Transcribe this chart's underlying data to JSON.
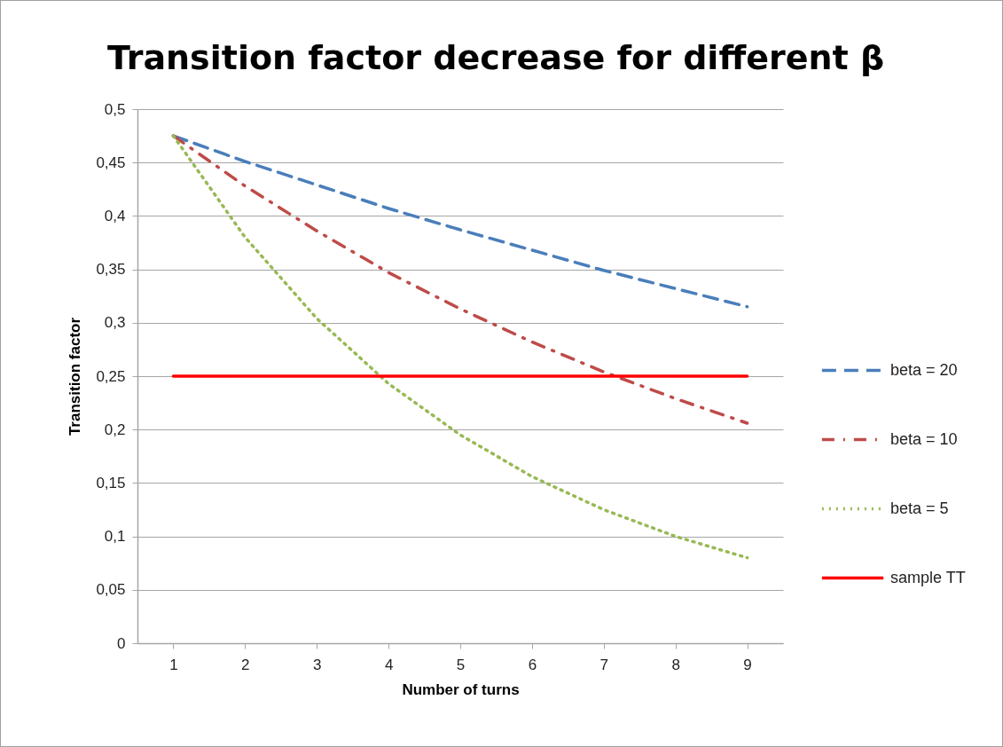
{
  "chart_data": {
    "type": "line",
    "title": "Transition factor decrease for different β",
    "xlabel": "Number of turns",
    "ylabel": "Transition factor",
    "categories": [
      "1",
      "2",
      "3",
      "4",
      "5",
      "6",
      "7",
      "8",
      "9"
    ],
    "series": [
      {
        "name": "beta = 20",
        "color": "#4a7ebb",
        "line_style": "dashed",
        "values": [
          0.475,
          0.451,
          0.429,
          0.407,
          0.387,
          0.368,
          0.349,
          0.332,
          0.315
        ]
      },
      {
        "name": "beta = 10",
        "color": "#be4b48",
        "line_style": "dashdot",
        "values": [
          0.475,
          0.428,
          0.386,
          0.347,
          0.313,
          0.282,
          0.254,
          0.229,
          0.206
        ]
      },
      {
        "name": "beta = 5",
        "color": "#98b954",
        "line_style": "dotted",
        "values": [
          0.475,
          0.38,
          0.304,
          0.243,
          0.195,
          0.156,
          0.125,
          0.1,
          0.08
        ]
      },
      {
        "name": "sample TT",
        "color": "#ff0000",
        "line_style": "solid",
        "values": [
          0.25,
          0.25,
          0.25,
          0.25,
          0.25,
          0.25,
          0.25,
          0.25,
          0.25
        ]
      }
    ],
    "ylim": [
      0,
      0.5
    ],
    "yticks": [
      {
        "value": 0,
        "label": "0"
      },
      {
        "value": 0.05,
        "label": "0,05"
      },
      {
        "value": 0.1,
        "label": "0,1"
      },
      {
        "value": 0.15,
        "label": "0,15"
      },
      {
        "value": 0.2,
        "label": "0,2"
      },
      {
        "value": 0.25,
        "label": "0,25"
      },
      {
        "value": 0.3,
        "label": "0,3"
      },
      {
        "value": 0.35,
        "label": "0,35"
      },
      {
        "value": 0.4,
        "label": "0,4"
      },
      {
        "value": 0.45,
        "label": "0,45"
      },
      {
        "value": 0.5,
        "label": "0,5"
      }
    ],
    "grid": "y",
    "legend": "right",
    "marker": "none"
  }
}
